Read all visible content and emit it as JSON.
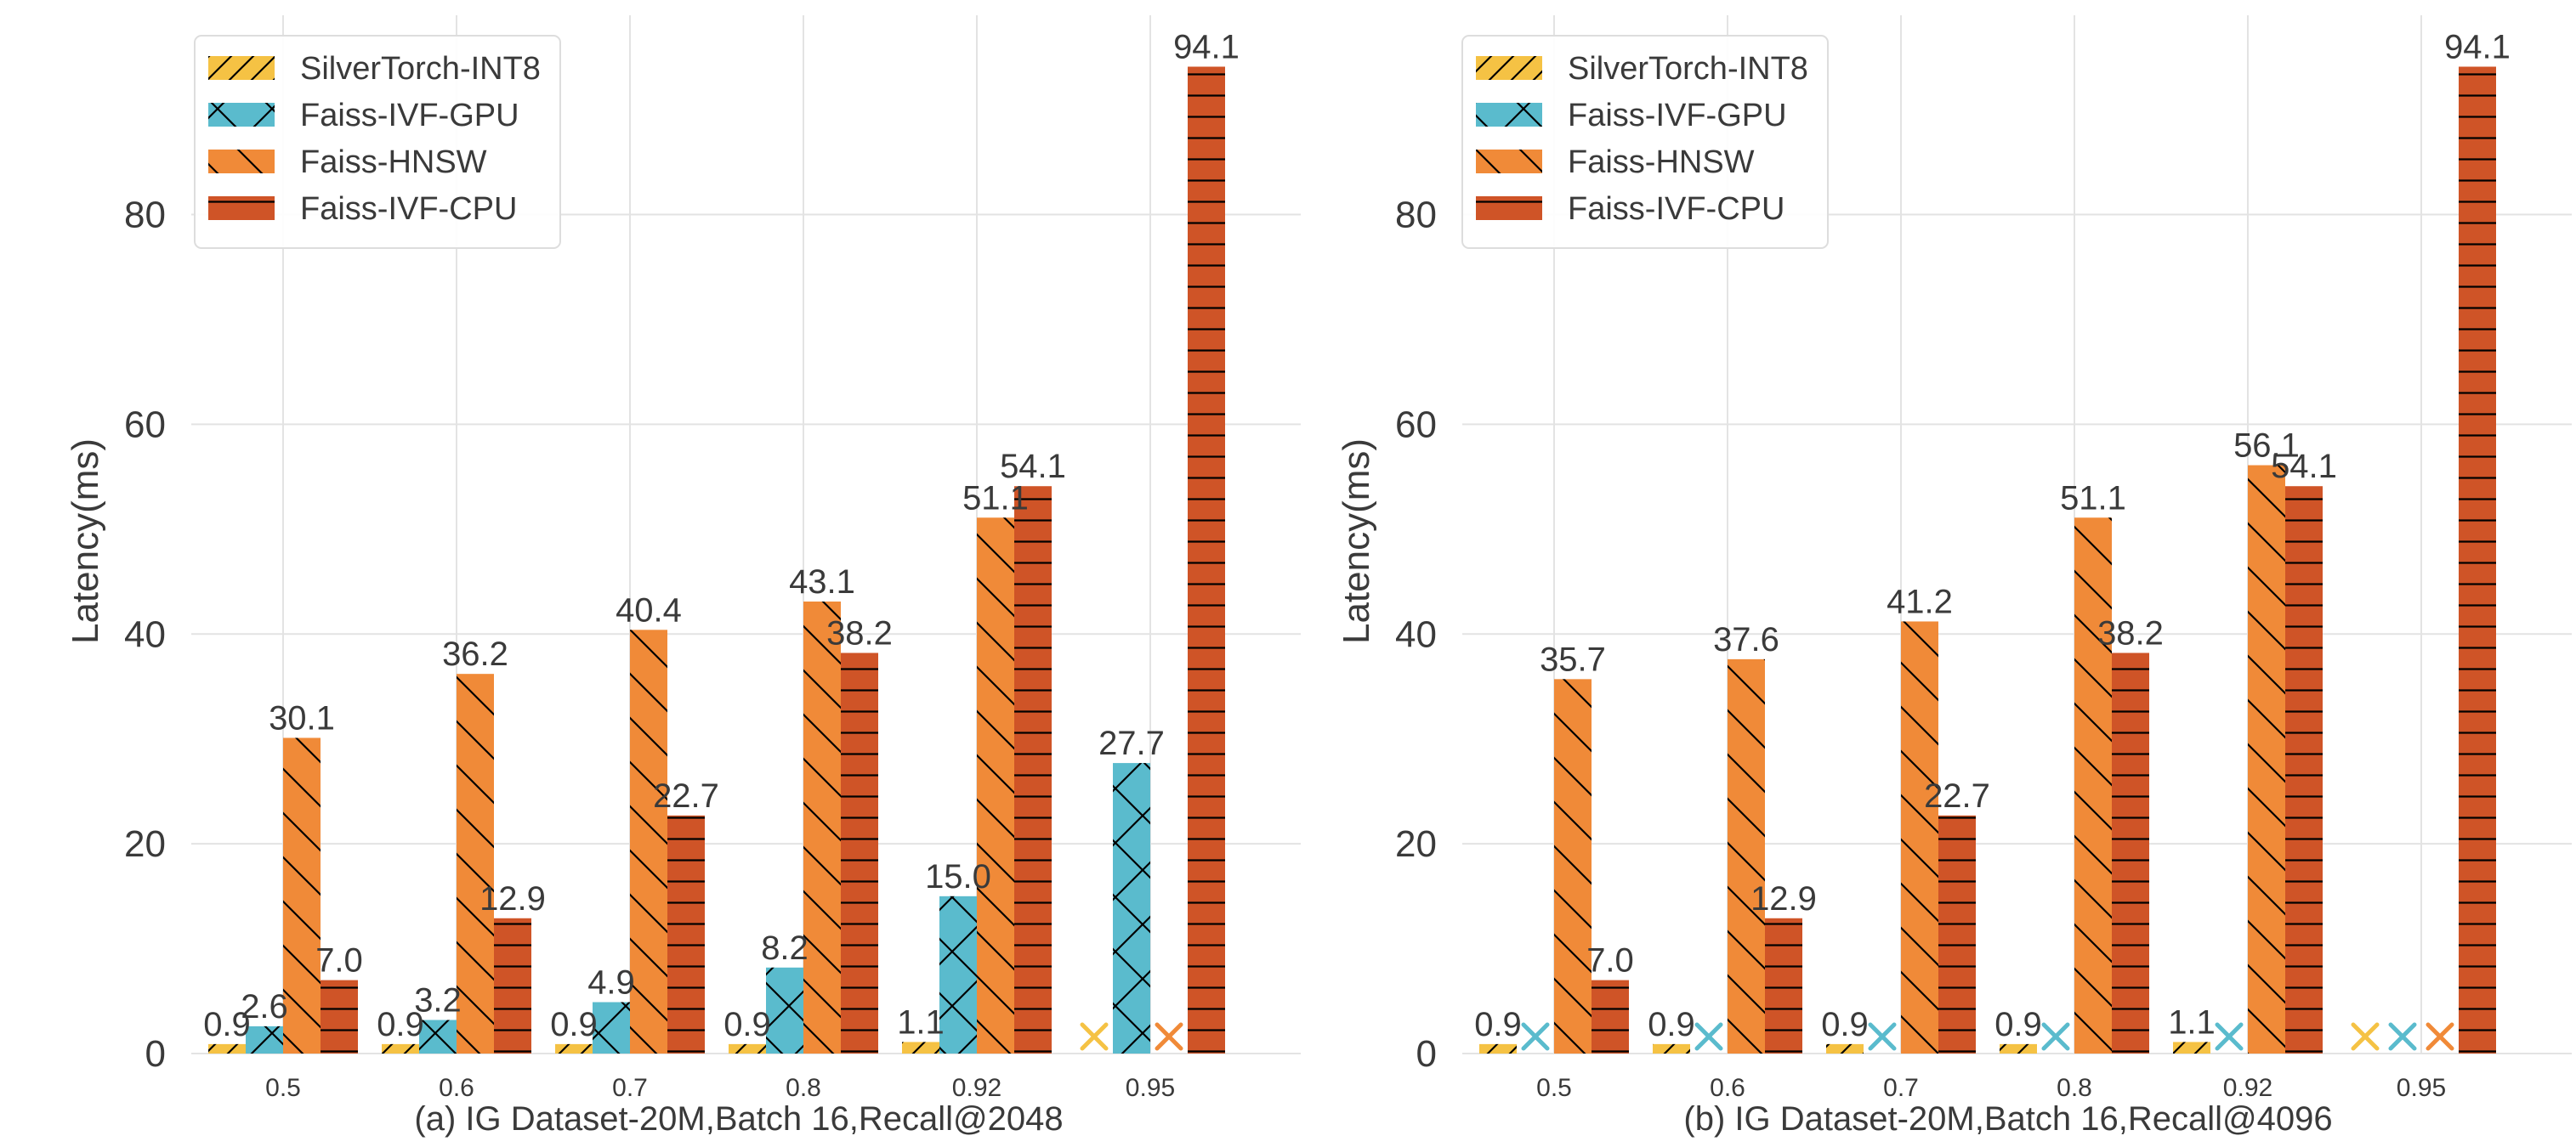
{
  "chart_data": [
    {
      "type": "bar",
      "caption": "(a) IG Dataset-20M,Batch 16,Recall@2048",
      "ylabel": "Latency(ms)",
      "xlabel": "",
      "ylim": [
        0,
        99
      ],
      "yticks": [
        0,
        20,
        40,
        60,
        80
      ],
      "categories": [
        "0.5",
        "0.6",
        "0.7",
        "0.8",
        "0.92",
        "0.95"
      ],
      "legend_position": "top-left",
      "grid": true,
      "series": [
        {
          "name": "SilverTorch-INT8",
          "color": "#f5c244",
          "hatch": "slash",
          "values": [
            0.9,
            0.9,
            0.9,
            0.9,
            1.1,
            null
          ],
          "labels": [
            "0.9",
            "0.9",
            "0.9",
            "0.9",
            "1.1",
            null
          ]
        },
        {
          "name": "Faiss-IVF-GPU",
          "color": "#5abbcd",
          "hatch": "cross",
          "values": [
            2.6,
            3.2,
            4.9,
            8.2,
            15.0,
            27.7
          ],
          "labels": [
            "2.6",
            "3.2",
            "4.9",
            "8.2",
            "15.0",
            "27.7"
          ]
        },
        {
          "name": "Faiss-HNSW",
          "color": "#f08a38",
          "hatch": "backslash",
          "values": [
            30.1,
            36.2,
            40.4,
            43.1,
            51.1,
            null
          ],
          "labels": [
            "30.1",
            "36.2",
            "40.4",
            "43.1",
            "51.1",
            null
          ]
        },
        {
          "name": "Faiss-IVF-CPU",
          "color": "#cf5427",
          "hatch": "horizontal",
          "values": [
            7.0,
            12.9,
            22.7,
            38.2,
            54.1,
            94.1
          ],
          "labels": [
            "7.0",
            "12.9",
            "22.7",
            "38.2",
            "54.1",
            "94.1"
          ]
        }
      ]
    },
    {
      "type": "bar",
      "caption": "(b) IG Dataset-20M,Batch 16,Recall@4096",
      "ylabel": "Latency(ms)",
      "xlabel": "",
      "ylim": [
        0,
        99
      ],
      "yticks": [
        0,
        20,
        40,
        60,
        80
      ],
      "categories": [
        "0.5",
        "0.6",
        "0.7",
        "0.8",
        "0.92",
        "0.95"
      ],
      "legend_position": "top-left",
      "grid": true,
      "series": [
        {
          "name": "SilverTorch-INT8",
          "color": "#f5c244",
          "hatch": "slash",
          "values": [
            0.9,
            0.9,
            0.9,
            0.9,
            1.1,
            null
          ],
          "labels": [
            "0.9",
            "0.9",
            "0.9",
            "0.9",
            "1.1",
            null
          ]
        },
        {
          "name": "Faiss-IVF-GPU",
          "color": "#5abbcd",
          "hatch": "cross",
          "values": [
            null,
            null,
            null,
            null,
            null,
            null
          ],
          "labels": [
            null,
            null,
            null,
            null,
            null,
            null
          ]
        },
        {
          "name": "Faiss-HNSW",
          "color": "#f08a38",
          "hatch": "backslash",
          "values": [
            35.7,
            37.6,
            41.2,
            51.1,
            56.1,
            null
          ],
          "labels": [
            "35.7",
            "37.6",
            "41.2",
            "51.1",
            "56.1",
            null
          ]
        },
        {
          "name": "Faiss-IVF-CPU",
          "color": "#cf5427",
          "hatch": "horizontal",
          "values": [
            7.0,
            12.9,
            22.7,
            38.2,
            54.1,
            94.1
          ],
          "labels": [
            "7.0",
            "12.9",
            "22.7",
            "38.2",
            "54.1",
            "94.1"
          ]
        }
      ]
    }
  ]
}
